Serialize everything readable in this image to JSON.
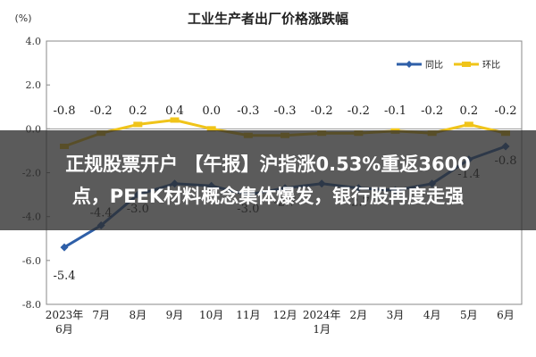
{
  "chart_data": {
    "type": "line",
    "title": "工业生产者出厂价格涨跌幅",
    "unit_label": "(%)",
    "categories": [
      "2023年|6月",
      "7月",
      "8月",
      "9月",
      "10月",
      "11月",
      "12月",
      "2024年|1月",
      "2月",
      "3月",
      "4月",
      "5月",
      "6月"
    ],
    "yticks": [
      "4.0",
      "2.0",
      "0.0",
      "-2.0",
      "-4.0",
      "-6.0",
      "-8.0"
    ],
    "ylim": [
      -8,
      4
    ],
    "series": [
      {
        "name": "同比",
        "color": "#2e5fa8",
        "values": [
          -5.4,
          -4.4,
          -3.0,
          -2.5,
          -2.6,
          -3.0,
          -2.7,
          -2.5,
          -2.7,
          -2.8,
          -2.5,
          -1.4,
          -0.8
        ],
        "labels": [
          "-5.4",
          "-4.4",
          "-3.0",
          "",
          "",
          "-3.0",
          "-2.7",
          "",
          "-2.7",
          "",
          "",
          "-1.4",
          "-0.8"
        ]
      },
      {
        "name": "环比",
        "color": "#f0c419",
        "values": [
          -0.8,
          -0.2,
          0.2,
          0.4,
          0.0,
          -0.3,
          -0.3,
          -0.2,
          -0.2,
          -0.1,
          -0.2,
          0.2,
          -0.2
        ],
        "labels": [
          "-0.8",
          "-0.2",
          "0.2",
          "0.4",
          "0.0",
          "-0.3",
          "-0.3",
          "-0.2",
          "-0.2",
          "-0.1",
          "-0.2",
          "0.2",
          "-0.2"
        ]
      }
    ],
    "grid": false,
    "legend": "top-right"
  },
  "banner": {
    "line1": "正规股票开户 【午报】沪指涨0.53%重返3600",
    "line2": "点，PEEK材料概念集体爆发，银行股再度走强"
  }
}
